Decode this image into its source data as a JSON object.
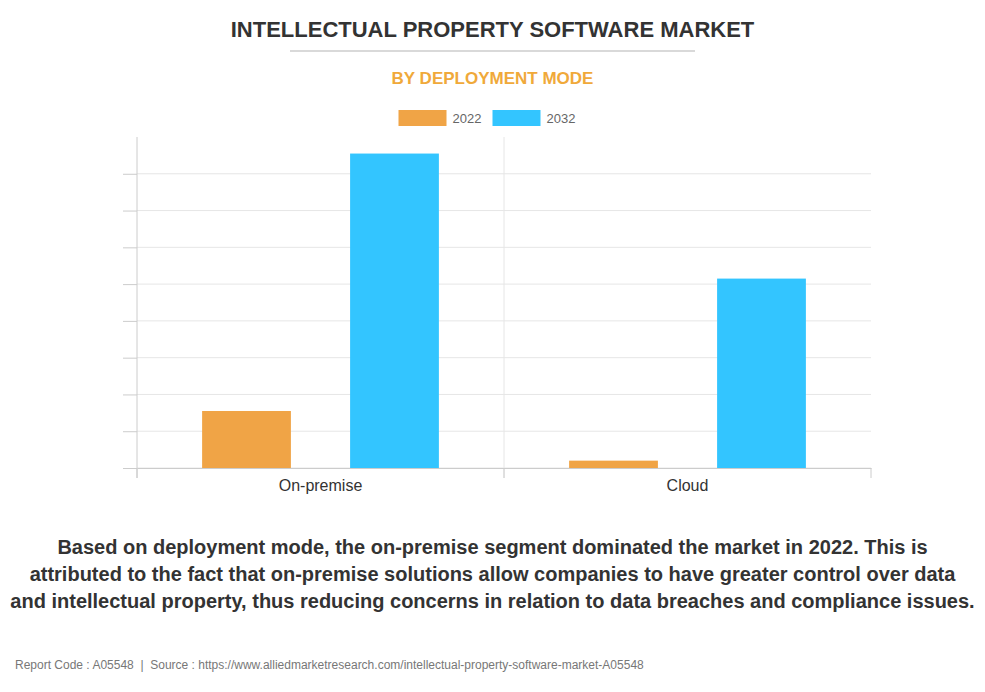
{
  "chart_data": {
    "type": "bar",
    "title": "INTELLECTUAL PROPERTY SOFTWARE MARKET",
    "subtitle": "BY DEPLOYMENT MODE",
    "categories": [
      "On-premise",
      "Cloud"
    ],
    "series": [
      {
        "name": "2022",
        "color": "#f0a446",
        "values": [
          1.55,
          0.2
        ]
      },
      {
        "name": "2032",
        "color": "#33c5ff",
        "values": [
          8.55,
          5.15
        ]
      }
    ],
    "ylim": [
      0,
      9
    ],
    "yticks": [
      0,
      1,
      2,
      3,
      4,
      5,
      6,
      7,
      8
    ],
    "grid": true,
    "legend": "top",
    "tick_labels": "x",
    "annotations": [
      "Based on deployment mode, the on-premise segment dominated the market in 2022. This is attributed to the fact that on-premise solutions allow companies to have greater control over data and intellectual property, thus reducing concerns in relation to data breaches and compliance issues.",
      "Report Code : A05548  |  Source : https://www.alliedmarketresearch.com/intellectual-property-software-market-A05548"
    ]
  }
}
